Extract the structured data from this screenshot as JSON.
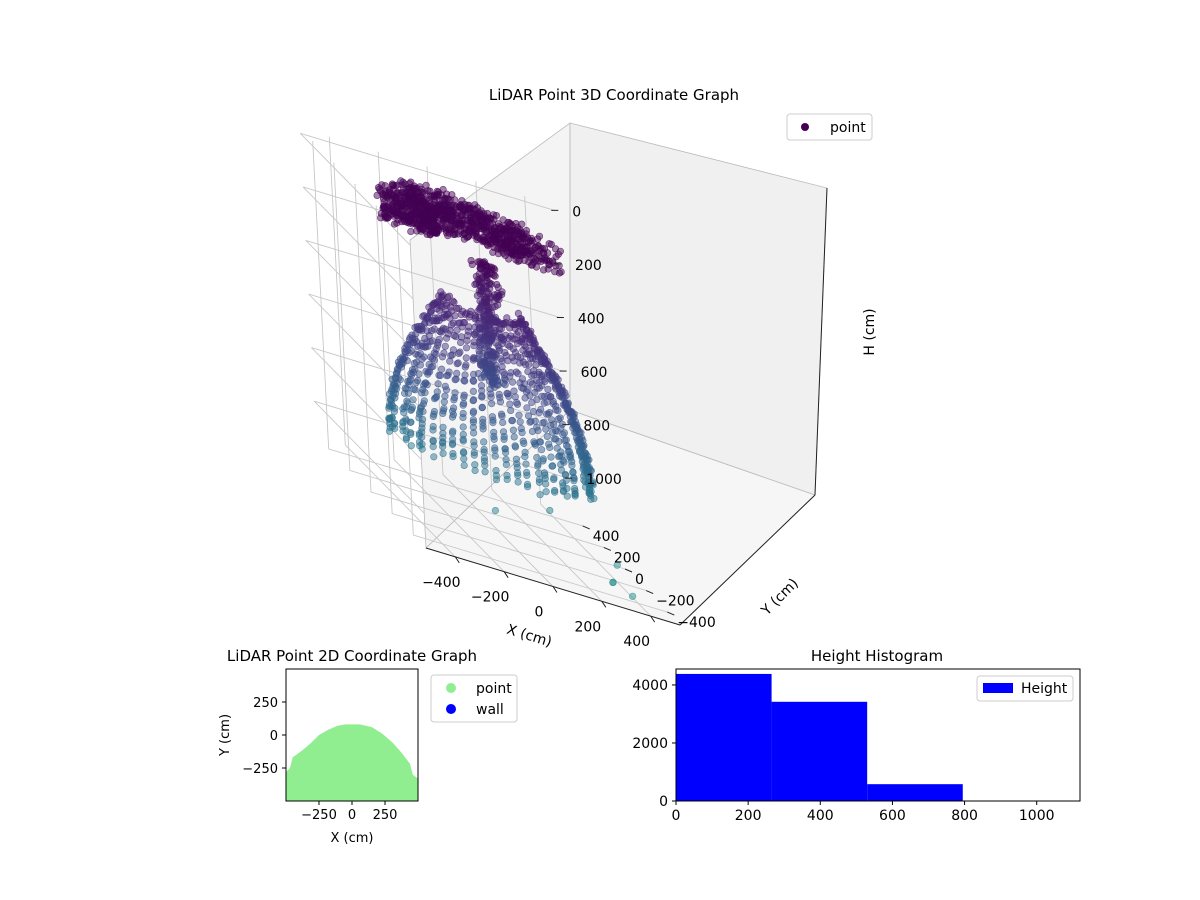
{
  "chart_data": [
    {
      "type": "scatter3d",
      "title": "LiDAR Point 3D Coordinate Graph",
      "xlabel": "X (cm)",
      "ylabel": "Y (cm)",
      "zlabel": "H (cm)",
      "xticks": [
        -400,
        -200,
        0,
        200,
        400
      ],
      "yticks": [
        -400,
        -200,
        0,
        200,
        400
      ],
      "zticks": [
        0,
        200,
        400,
        600,
        800,
        1000
      ],
      "xlim": [
        -520,
        520
      ],
      "ylim": [
        -520,
        520
      ],
      "zlim": [
        1130,
        -20
      ],
      "zaxis_inverted": true,
      "grid": true,
      "legend": {
        "placement": "upper-right",
        "entries": [
          {
            "label": "point",
            "color": "#440154"
          }
        ]
      },
      "colormap": "viridis",
      "series": [
        {
          "name": "point",
          "description_values": "approx. 8300 points forming a dome-shaped ceiling and wall sweep; heights 0-1100 cm"
        }
      ]
    },
    {
      "type": "scatter",
      "title": "LiDAR Point 2D Coordinate Graph",
      "xlabel": "X (cm)",
      "ylabel": "Y (cm)",
      "xticks": [
        "−250",
        "0",
        "250"
      ],
      "yticks": [
        "250",
        "0",
        "−250"
      ],
      "xlim": [
        -500,
        500
      ],
      "ylim": [
        -500,
        500
      ],
      "legend": {
        "placement": "outside-right",
        "entries": [
          {
            "label": "point",
            "color": "#90ee90"
          },
          {
            "label": "wall",
            "color": "#0000ff"
          }
        ]
      },
      "outline_y_max": 80,
      "series": [
        {
          "name": "point",
          "color": "#90ee90"
        },
        {
          "name": "wall",
          "color": "#0000ff"
        }
      ]
    },
    {
      "type": "bar",
      "title": "Height Histogram",
      "xlabel": "",
      "ylabel": "",
      "bins": [
        {
          "start": 0,
          "end": 265,
          "count": 4380
        },
        {
          "start": 265,
          "end": 530,
          "count": 3420
        },
        {
          "start": 530,
          "end": 795,
          "count": 580
        },
        {
          "start": 795,
          "end": 1060,
          "count": 0
        }
      ],
      "xlim": [
        0,
        1120
      ],
      "ylim": [
        0,
        4550
      ],
      "xticks": [
        0,
        200,
        400,
        600,
        800,
        1000
      ],
      "yticks": [
        0,
        2000,
        4000
      ],
      "legend": {
        "placement": "upper-right",
        "entries": [
          {
            "label": "Height",
            "color": "#0000ff"
          }
        ]
      },
      "color": "#0000ff"
    }
  ]
}
